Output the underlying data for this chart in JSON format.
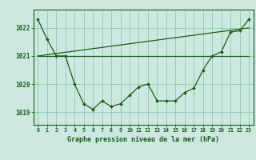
{
  "background_color": "#cce8e0",
  "grid_color": "#88ccaa",
  "line_color": "#1a5c1a",
  "title": "Graphe pression niveau de la mer (hPa)",
  "ylabel_ticks": [
    1019,
    1020,
    1021,
    1022
  ],
  "xlim": [
    -0.5,
    23.5
  ],
  "ylim": [
    1018.55,
    1022.65
  ],
  "hours": [
    0,
    1,
    2,
    3,
    4,
    5,
    6,
    7,
    8,
    9,
    10,
    11,
    12,
    13,
    14,
    15,
    16,
    17,
    18,
    19,
    20,
    21,
    22,
    23
  ],
  "series1": [
    1022.3,
    1021.6,
    1021.0,
    1021.0,
    1020.0,
    1019.3,
    1019.1,
    1019.4,
    1019.2,
    1019.3,
    1019.6,
    1019.9,
    1020.0,
    1019.4,
    1019.4,
    1019.4,
    1019.7,
    1019.85,
    1020.5,
    1021.0,
    1021.15,
    1021.85,
    1021.9,
    1022.3
  ],
  "series2": [
    1021.0,
    1021.0,
    1021.0,
    1021.0,
    1021.0,
    1021.0,
    1021.0,
    1021.0,
    1021.0,
    1021.0,
    1021.0,
    1021.0,
    1021.0,
    1021.0,
    1021.0,
    1021.0,
    1021.0,
    1021.0,
    1021.0,
    1021.0,
    1021.0,
    1021.0,
    1021.0,
    1021.0
  ],
  "series3": [
    1021.0,
    1021.044,
    1021.087,
    1021.13,
    1021.174,
    1021.217,
    1021.261,
    1021.304,
    1021.348,
    1021.391,
    1021.435,
    1021.478,
    1021.522,
    1021.565,
    1021.609,
    1021.652,
    1021.696,
    1021.739,
    1021.783,
    1021.826,
    1021.87,
    1021.913,
    1021.957,
    1022.0
  ]
}
